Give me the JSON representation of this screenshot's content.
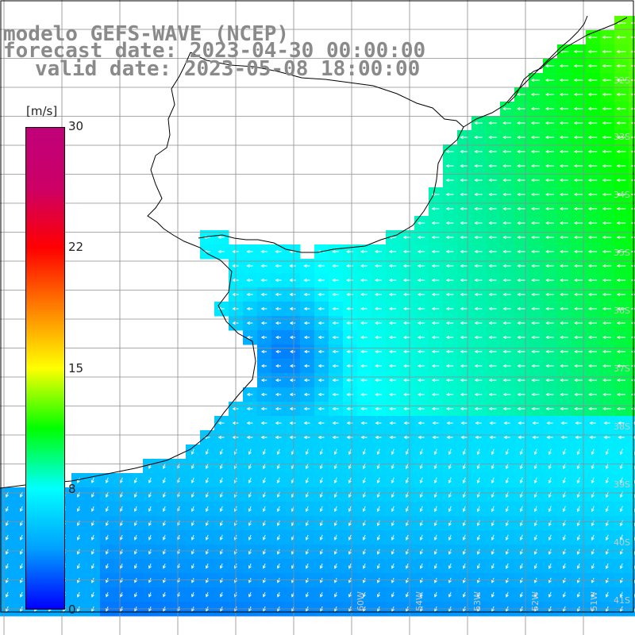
{
  "title": {
    "line1": "modelo GEFS-WAVE (NCEP)",
    "line2": "forecast date: 2023-04-30 00:00:00",
    "line3": "valid date: 2023-05-08 18:00:00"
  },
  "colorbar": {
    "unit": "[m/s]",
    "ticks": [
      "30",
      "22",
      "15",
      "8",
      "0"
    ],
    "min": 0,
    "max": 30,
    "colors": [
      "#0000ff",
      "#00a0ff",
      "#00ffff",
      "#00ff00",
      "#ffff00",
      "#ff8000",
      "#ff0000",
      "#cc0066",
      "#c0007a"
    ]
  },
  "lat_labels": [
    "32S",
    "33S",
    "34S",
    "35S",
    "36S",
    "37S",
    "38S",
    "39S",
    "40S",
    "41S"
  ],
  "lon_labels": [
    "60W",
    "54W",
    "53W",
    "52W",
    "51W"
  ],
  "colors": {
    "land": "#ffffff",
    "grid": "#8c8c8c",
    "coast": "#000000",
    "arrow": "#ffffff",
    "title": "#8a8a8a"
  }
}
